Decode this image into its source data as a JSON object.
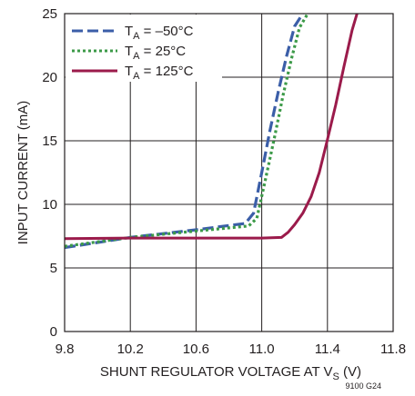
{
  "chart_data": {
    "type": "line",
    "xlabel": "SHUNT REGULATOR VOLTAGE AT V",
    "xlabel_sub": "S",
    "xlabel_suffix": " (V)",
    "ylabel": "INPUT CURRENT (mA)",
    "xlim": [
      9.8,
      11.8
    ],
    "ylim": [
      0,
      25
    ],
    "x_ticks": [
      9.8,
      10.2,
      10.6,
      11.0,
      11.4,
      11.8
    ],
    "x_tick_labels": [
      "9.8",
      "10.2",
      "10.6",
      "11.0",
      "11.4",
      "11.8"
    ],
    "y_ticks": [
      0,
      5,
      10,
      15,
      20,
      25
    ],
    "y_tick_labels": [
      "0",
      "5",
      "10",
      "15",
      "20",
      "25"
    ],
    "grid": true,
    "legend_position": "top-left",
    "figure_id": "9100 G24",
    "series": [
      {
        "name_main": "T",
        "name_sub": "A",
        "name_rest": " = –50°C",
        "color": "#3b5ea8",
        "style": "dashed",
        "x": [
          9.8,
          10.2,
          10.6,
          10.9,
          10.95,
          11.0,
          11.05,
          11.1,
          11.15,
          11.2,
          11.25
        ],
        "y": [
          6.6,
          7.4,
          8.0,
          8.5,
          9.3,
          12.5,
          15.8,
          18.8,
          21.6,
          24.0,
          25.0
        ]
      },
      {
        "name_main": "T",
        "name_sub": "A",
        "name_rest": " = 25°C",
        "color": "#3c9a48",
        "style": "dotted",
        "x": [
          9.8,
          10.2,
          10.6,
          10.92,
          10.97,
          11.02,
          11.08,
          11.13,
          11.18,
          11.23,
          11.28
        ],
        "y": [
          6.7,
          7.4,
          7.9,
          8.3,
          8.9,
          11.8,
          15.4,
          18.6,
          21.4,
          23.9,
          25.0
        ]
      },
      {
        "name_main": "T",
        "name_sub": "A",
        "name_rest": " = 125°C",
        "color": "#9b1b4b",
        "style": "solid",
        "x": [
          9.8,
          10.2,
          10.6,
          11.0,
          11.12,
          11.16,
          11.2,
          11.25,
          11.3,
          11.35,
          11.4,
          11.45,
          11.5,
          11.55,
          11.58
        ],
        "y": [
          7.3,
          7.35,
          7.35,
          7.35,
          7.4,
          7.8,
          8.4,
          9.3,
          10.6,
          12.5,
          15.1,
          17.8,
          20.8,
          23.7,
          25.0
        ]
      }
    ]
  }
}
